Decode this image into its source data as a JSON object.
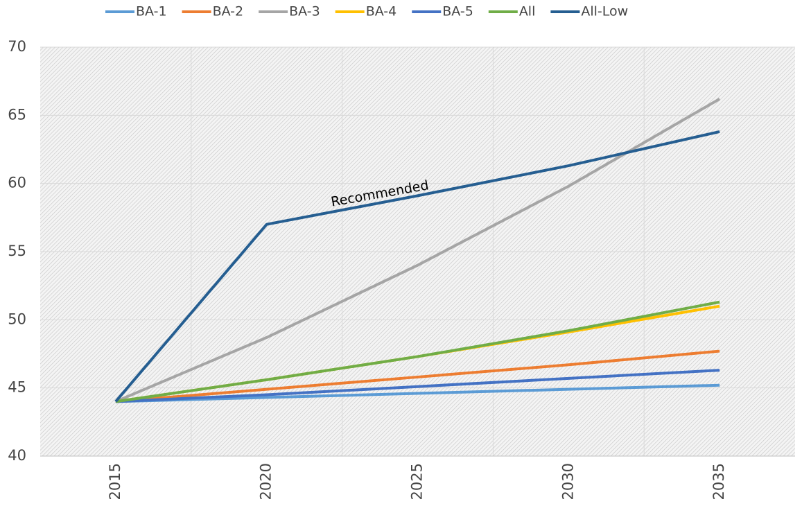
{
  "chart_data": {
    "type": "line",
    "categories": [
      "2015",
      "2020",
      "2025",
      "2030",
      "2035"
    ],
    "series": [
      {
        "name": "BA-1",
        "color": "#5b9bd5",
        "values": [
          44,
          44.3,
          44.6,
          44.9,
          45.2
        ]
      },
      {
        "name": "BA-2",
        "color": "#ed7d31",
        "values": [
          44,
          44.9,
          45.8,
          46.7,
          47.7
        ]
      },
      {
        "name": "BA-3",
        "color": "#a5a5a5",
        "values": [
          44,
          48.7,
          54,
          59.8,
          66.2
        ]
      },
      {
        "name": "BA-4",
        "color": "#ffc000",
        "values": [
          44,
          45.6,
          47.3,
          49.1,
          51.0
        ]
      },
      {
        "name": "BA-5",
        "color": "#4472c4",
        "values": [
          44,
          44.5,
          45.1,
          45.7,
          46.3
        ]
      },
      {
        "name": "All",
        "color": "#70ad47",
        "values": [
          44,
          45.6,
          47.3,
          49.2,
          51.3
        ]
      },
      {
        "name": "All-Low",
        "color": "#255e91",
        "values": [
          44,
          57,
          59.1,
          61.3,
          63.8
        ]
      }
    ],
    "annotations": [
      "Recommended"
    ],
    "ylim": [
      40,
      70
    ],
    "yticks": [
      40,
      45,
      50,
      55,
      60,
      65,
      70
    ],
    "grid": true,
    "legend": "top"
  }
}
